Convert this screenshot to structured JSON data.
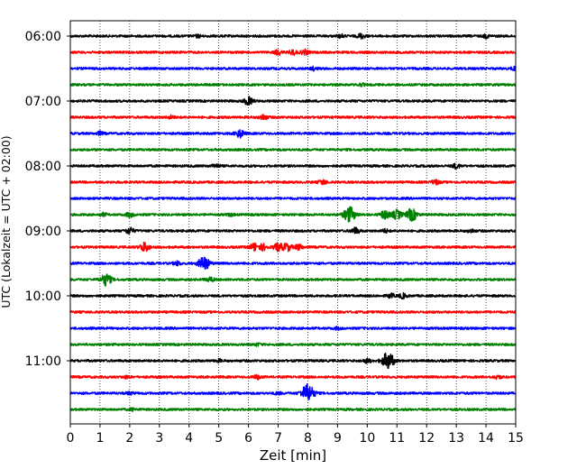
{
  "chart_data": {
    "type": "line",
    "title": "",
    "xlabel": "Zeit  [min]",
    "ylabel": "UTC (Lokalzeit = UTC + 02:00)",
    "xlim": [
      0,
      15
    ],
    "x_ticks": [
      "0",
      "1",
      "2",
      "3",
      "4",
      "5",
      "6",
      "7",
      "8",
      "9",
      "10",
      "11",
      "12",
      "13",
      "14",
      "15"
    ],
    "y_ticks": [
      "06:00",
      "07:00",
      "08:00",
      "09:00",
      "10:00",
      "11:00"
    ],
    "grid": "vertical dotted",
    "trace_interval_min": 15,
    "trace_colors": [
      "#000000",
      "#ff0000",
      "#0000ff",
      "#008000"
    ],
    "traces": [
      {
        "start": "06:00",
        "events": [
          [
            4.3,
            0.15
          ],
          [
            9.1,
            0.2
          ],
          [
            9.8,
            0.3
          ],
          [
            14,
            0.2
          ]
        ]
      },
      {
        "start": "06:15",
        "events": [
          [
            7.0,
            0.3
          ],
          [
            7.5,
            0.3
          ],
          [
            7.9,
            0.3
          ]
        ]
      },
      {
        "start": "06:30",
        "events": [
          [
            8.2,
            0.2
          ],
          [
            15.0,
            0.3
          ]
        ]
      },
      {
        "start": "06:45",
        "events": [
          [
            9.8,
            0.15
          ]
        ]
      },
      {
        "start": "07:00",
        "events": [
          [
            6.0,
            0.5
          ]
        ]
      },
      {
        "start": "07:15",
        "events": [
          [
            3.4,
            0.2
          ],
          [
            6.5,
            0.35
          ]
        ]
      },
      {
        "start": "07:30",
        "events": [
          [
            1.0,
            0.2
          ],
          [
            5.7,
            0.5
          ]
        ]
      },
      {
        "start": "07:45",
        "events": []
      },
      {
        "start": "08:00",
        "events": [
          [
            4.9,
            0.25
          ],
          [
            13.0,
            0.3
          ]
        ]
      },
      {
        "start": "08:15",
        "events": [
          [
            8.5,
            0.3
          ],
          [
            12.3,
            0.3
          ]
        ]
      },
      {
        "start": "08:30",
        "events": []
      },
      {
        "start": "08:45",
        "events": [
          [
            1.1,
            0.2
          ],
          [
            2.0,
            0.3
          ],
          [
            5.4,
            0.15
          ],
          [
            9.4,
            1.0
          ],
          [
            10.6,
            0.55
          ],
          [
            11.0,
            0.6
          ],
          [
            11.5,
            0.8
          ]
        ]
      },
      {
        "start": "09:00",
        "events": [
          [
            2.0,
            0.4
          ],
          [
            9.6,
            0.4
          ],
          [
            10.6,
            0.2
          ],
          [
            13.5,
            0.2
          ]
        ]
      },
      {
        "start": "09:15",
        "events": [
          [
            2.5,
            0.6
          ],
          [
            6.2,
            0.5
          ],
          [
            6.5,
            0.4
          ],
          [
            7.0,
            0.5
          ],
          [
            7.3,
            0.5
          ],
          [
            7.7,
            0.35
          ]
        ]
      },
      {
        "start": "09:30",
        "events": [
          [
            3.6,
            0.25
          ],
          [
            4.5,
            0.9
          ]
        ]
      },
      {
        "start": "09:45",
        "events": [
          [
            1.2,
            0.8
          ],
          [
            4.7,
            0.3
          ]
        ]
      },
      {
        "start": "10:00",
        "events": [
          [
            10.8,
            0.25
          ],
          [
            11.2,
            0.3
          ]
        ]
      },
      {
        "start": "10:15",
        "events": []
      },
      {
        "start": "10:30",
        "events": [
          [
            9.0,
            0.15
          ]
        ]
      },
      {
        "start": "10:45",
        "events": [
          [
            6.3,
            0.15
          ]
        ]
      },
      {
        "start": "11:00",
        "events": [
          [
            5.0,
            0.15
          ],
          [
            10.0,
            0.25
          ],
          [
            10.7,
            1.1
          ]
        ]
      },
      {
        "start": "11:15",
        "events": [
          [
            1.9,
            0.15
          ],
          [
            6.3,
            0.25
          ],
          [
            14.4,
            0.2
          ]
        ]
      },
      {
        "start": "11:30",
        "events": [
          [
            2.0,
            0.15
          ],
          [
            7.0,
            0.15
          ],
          [
            8.0,
            1.2
          ]
        ]
      },
      {
        "start": "11:45",
        "events": [
          [
            2.1,
            0.15
          ]
        ]
      }
    ]
  }
}
